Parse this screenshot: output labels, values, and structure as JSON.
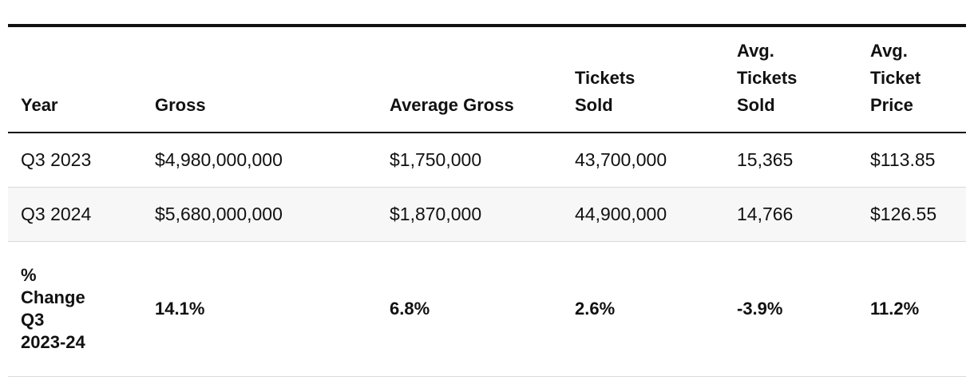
{
  "table": {
    "headers": [
      "Year",
      "Gross",
      "Average Gross",
      "Tickets\nSold",
      "Avg.\nTickets\nSold",
      "Avg.\nTicket\nPrice"
    ],
    "rows": [
      [
        "Q3 2023",
        "$4,980,000,000",
        "$1,750,000",
        "43,700,000",
        "15,365",
        "$113.85"
      ],
      [
        "Q3 2024",
        "$5,680,000,000",
        "$1,870,000",
        "44,900,000",
        "14,766",
        "$126.55"
      ],
      [
        "%\nChange\nQ3\n2023-24",
        "14.1%",
        "6.8%",
        "2.6%",
        "-3.9%",
        "11.2%"
      ]
    ]
  }
}
